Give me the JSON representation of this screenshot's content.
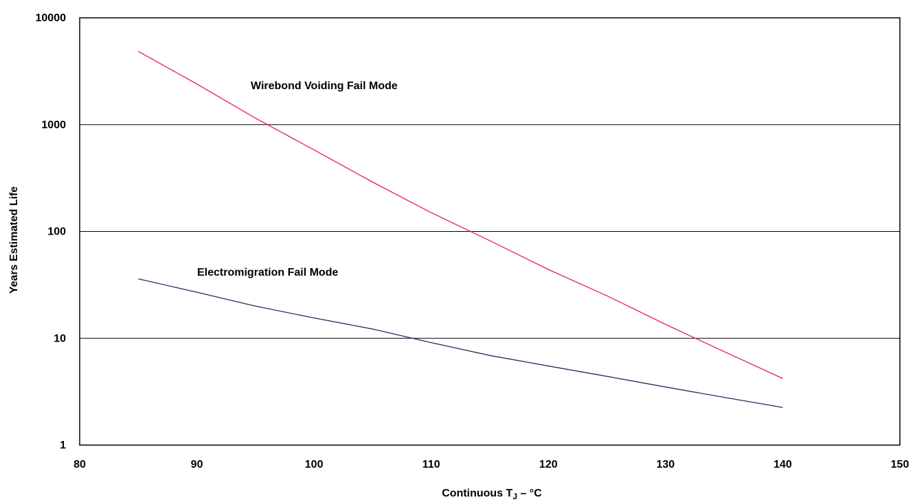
{
  "chart_data": {
    "type": "line",
    "title": "",
    "xlabel": "Continuous T",
    "xlabel_subscript": "J",
    "xlabel_suffix": " – °C",
    "ylabel": "Years Estimated Life",
    "xlim": [
      80,
      150
    ],
    "ylim": [
      1,
      10000
    ],
    "yscale": "log",
    "x_ticks": [
      80,
      90,
      100,
      110,
      120,
      130,
      140,
      150
    ],
    "x_tick_labels": [
      "80",
      "90",
      "100",
      "110",
      "120",
      "130",
      "140",
      "150"
    ],
    "y_ticks": [
      1,
      10,
      100,
      1000,
      10000
    ],
    "y_tick_labels": [
      "1",
      "10",
      "100",
      "1000",
      "10000"
    ],
    "grid": "horizontal",
    "series": [
      {
        "name": "Wirebond Voiding Fail Mode",
        "color": "#e8147a",
        "x": [
          85,
          90,
          95,
          100,
          105,
          110,
          115,
          120,
          125,
          130,
          135,
          140
        ],
        "y": [
          4850,
          2400,
          1150,
          580,
          290,
          150,
          82,
          44,
          25,
          13.5,
          7.5,
          4.2
        ]
      },
      {
        "name": "Electromigration Fail Mode",
        "color": "#2a2a5e",
        "x": [
          85,
          90,
          95,
          100,
          105,
          110,
          115,
          120,
          125,
          130,
          135,
          140
        ],
        "y": [
          36,
          27,
          20,
          15.5,
          12.2,
          9.1,
          6.9,
          5.5,
          4.4,
          3.5,
          2.8,
          2.25
        ]
      }
    ]
  }
}
